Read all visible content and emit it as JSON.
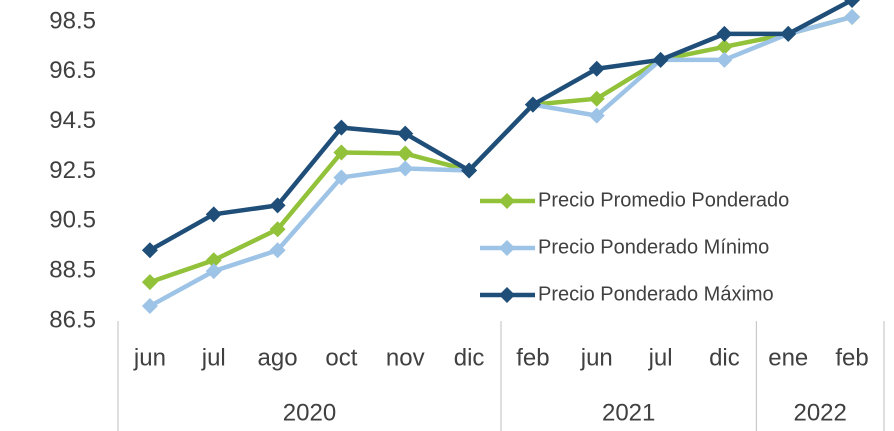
{
  "chart_data": {
    "type": "line",
    "categories": [
      "jun",
      "jul",
      "ago",
      "oct",
      "nov",
      "dic",
      "feb",
      "jun",
      "jul",
      "dic",
      "ene",
      "feb"
    ],
    "x_groups": [
      {
        "label": "2020",
        "count": 6
      },
      {
        "label": "2021",
        "count": 4
      },
      {
        "label": "2022",
        "count": 2
      }
    ],
    "series": [
      {
        "name": "Precio Promedio Ponderado",
        "color": "#92c13a",
        "values": [
          88.06,
          88.94,
          90.18,
          93.26,
          93.22,
          92.54,
          95.18,
          95.42,
          96.98,
          97.5,
          98.02,
          98.7
        ]
      },
      {
        "name": "Precio Ponderado Mínimo",
        "color": "#9dc3e6",
        "values": [
          87.1,
          88.5,
          89.34,
          92.26,
          92.62,
          92.54,
          95.18,
          94.74,
          96.98,
          96.98,
          98.02,
          98.7
        ]
      },
      {
        "name": "Precio Ponderado Máximo",
        "color": "#1f4e79",
        "values": [
          89.34,
          90.78,
          91.14,
          94.26,
          94.02,
          92.54,
          95.18,
          96.62,
          96.98,
          98.02,
          98.02,
          99.38
        ]
      }
    ],
    "ylim": [
      86.5,
      99.38
    ],
    "yticks": [
      86.5,
      88.5,
      90.5,
      92.5,
      94.5,
      96.5,
      98.5
    ],
    "legend": "right"
  }
}
